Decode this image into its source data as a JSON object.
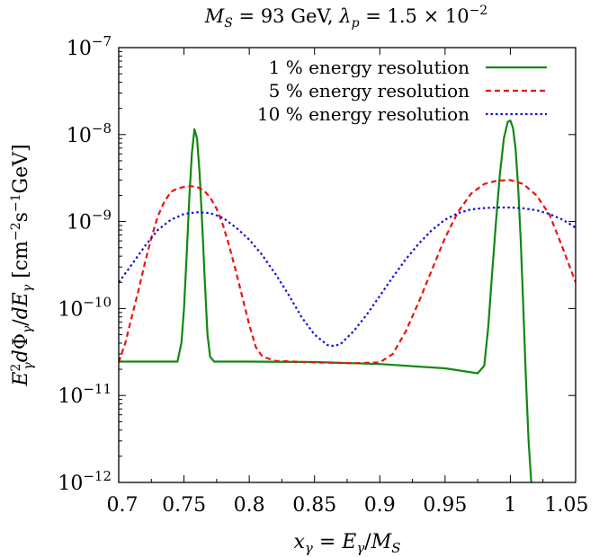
{
  "chart_data": {
    "type": "line",
    "title": "M_S = 93 GeV, λ_p = 1.5 × 10^−2",
    "xlabel": "x_γ = E_γ/M_S",
    "ylabel": "E_γ² dΦ_γ/dE_γ [cm⁻² s⁻¹ GeV]",
    "xlim": [
      0.7,
      1.05
    ],
    "ylim": [
      1e-12,
      1e-07
    ],
    "yscale": "log",
    "grid": false,
    "legend_position": "top-right",
    "x_ticks": [
      "0.7",
      "0.75",
      "0.8",
      "0.85",
      "0.9",
      "0.95",
      "1",
      "1.05"
    ],
    "y_ticks": [
      {
        "base": "10",
        "exp": "−12",
        "value": 1e-12
      },
      {
        "base": "10",
        "exp": "−11",
        "value": 1e-11
      },
      {
        "base": "10",
        "exp": "−10",
        "value": 1e-10
      },
      {
        "base": "10",
        "exp": "−9",
        "value": 1e-09
      },
      {
        "base": "10",
        "exp": "−8",
        "value": 1e-08
      },
      {
        "base": "10",
        "exp": "−7",
        "value": 1e-07
      }
    ],
    "series": [
      {
        "name": "1 % energy resolution",
        "color": "#118811",
        "dash": "solid",
        "points": [
          [
            0.7,
            2.45e-11
          ],
          [
            0.745,
            2.45e-11
          ],
          [
            0.748,
            4e-11
          ],
          [
            0.75,
            1e-10
          ],
          [
            0.752,
            4e-10
          ],
          [
            0.754,
            1.8e-09
          ],
          [
            0.756,
            6e-09
          ],
          [
            0.758,
            1.15e-08
          ],
          [
            0.76,
            9e-09
          ],
          [
            0.762,
            3.5e-09
          ],
          [
            0.764,
            9e-10
          ],
          [
            0.766,
            2e-10
          ],
          [
            0.768,
            5e-11
          ],
          [
            0.77,
            2.8e-11
          ],
          [
            0.773,
            2.45e-11
          ],
          [
            0.8,
            2.45e-11
          ],
          [
            0.85,
            2.42e-11
          ],
          [
            0.9,
            2.3e-11
          ],
          [
            0.95,
            2.05e-11
          ],
          [
            0.975,
            1.8e-11
          ],
          [
            0.98,
            2.2e-11
          ],
          [
            0.983,
            6e-11
          ],
          [
            0.986,
            2.5e-10
          ],
          [
            0.989,
            1e-09
          ],
          [
            0.992,
            3.5e-09
          ],
          [
            0.995,
            9e-09
          ],
          [
            0.998,
            1.4e-08
          ],
          [
            1.0,
            1.45e-08
          ],
          [
            1.002,
            1.2e-08
          ],
          [
            1.004,
            7e-09
          ],
          [
            1.006,
            2.5e-09
          ],
          [
            1.008,
            6e-10
          ],
          [
            1.01,
            1e-10
          ],
          [
            1.012,
            1.5e-11
          ],
          [
            1.014,
            3e-12
          ],
          [
            1.016,
            1e-12
          ]
        ]
      },
      {
        "name": "5 % energy resolution",
        "color": "#ee1111",
        "dash": "dashed",
        "points": [
          [
            0.7,
            2.4e-11
          ],
          [
            0.705,
            4e-11
          ],
          [
            0.71,
            8e-11
          ],
          [
            0.715,
            1.6e-10
          ],
          [
            0.72,
            3.3e-10
          ],
          [
            0.725,
            6.5e-10
          ],
          [
            0.73,
            1.15e-09
          ],
          [
            0.735,
            1.7e-09
          ],
          [
            0.74,
            2.2e-09
          ],
          [
            0.745,
            2.4e-09
          ],
          [
            0.75,
            2.5e-09
          ],
          [
            0.755,
            2.55e-09
          ],
          [
            0.76,
            2.5e-09
          ],
          [
            0.765,
            2.3e-09
          ],
          [
            0.77,
            1.9e-09
          ],
          [
            0.775,
            1.4e-09
          ],
          [
            0.78,
            9e-10
          ],
          [
            0.785,
            5e-10
          ],
          [
            0.79,
            2.6e-10
          ],
          [
            0.795,
            1.3e-10
          ],
          [
            0.8,
            6.5e-11
          ],
          [
            0.805,
            3.6e-11
          ],
          [
            0.81,
            2.8e-11
          ],
          [
            0.82,
            2.5e-11
          ],
          [
            0.85,
            2.4e-11
          ],
          [
            0.88,
            2.35e-11
          ],
          [
            0.9,
            2.4e-11
          ],
          [
            0.91,
            3e-11
          ],
          [
            0.92,
            5.5e-11
          ],
          [
            0.93,
            1.2e-10
          ],
          [
            0.94,
            2.8e-10
          ],
          [
            0.95,
            6.5e-10
          ],
          [
            0.96,
            1.3e-09
          ],
          [
            0.97,
            2.1e-09
          ],
          [
            0.98,
            2.7e-09
          ],
          [
            0.99,
            2.95e-09
          ],
          [
            1.0,
            3e-09
          ],
          [
            1.01,
            2.7e-09
          ],
          [
            1.02,
            2e-09
          ],
          [
            1.03,
            1.2e-09
          ],
          [
            1.04,
            5e-10
          ],
          [
            1.05,
            2e-10
          ]
        ]
      },
      {
        "name": "10 % energy resolution",
        "color": "#1111dd",
        "dash": "dotted",
        "points": [
          [
            0.7,
            2e-10
          ],
          [
            0.71,
            3.2e-10
          ],
          [
            0.72,
            5.2e-10
          ],
          [
            0.73,
            8e-10
          ],
          [
            0.74,
            1.05e-09
          ],
          [
            0.75,
            1.22e-09
          ],
          [
            0.76,
            1.28e-09
          ],
          [
            0.77,
            1.25e-09
          ],
          [
            0.78,
            1.1e-09
          ],
          [
            0.79,
            8.5e-10
          ],
          [
            0.8,
            6.2e-10
          ],
          [
            0.81,
            4.1e-10
          ],
          [
            0.82,
            2.5e-10
          ],
          [
            0.83,
            1.45e-10
          ],
          [
            0.84,
            8e-11
          ],
          [
            0.85,
            5e-11
          ],
          [
            0.86,
            3.8e-11
          ],
          [
            0.865,
            3.7e-11
          ],
          [
            0.87,
            3.9e-11
          ],
          [
            0.88,
            5.5e-11
          ],
          [
            0.89,
            8.5e-11
          ],
          [
            0.9,
            1.4e-10
          ],
          [
            0.91,
            2.3e-10
          ],
          [
            0.92,
            3.7e-10
          ],
          [
            0.93,
            5.6e-10
          ],
          [
            0.94,
            8e-10
          ],
          [
            0.95,
            1.05e-09
          ],
          [
            0.96,
            1.25e-09
          ],
          [
            0.97,
            1.38e-09
          ],
          [
            0.98,
            1.43e-09
          ],
          [
            0.99,
            1.45e-09
          ],
          [
            1.0,
            1.45e-09
          ],
          [
            1.01,
            1.42e-09
          ],
          [
            1.02,
            1.35e-09
          ],
          [
            1.03,
            1.22e-09
          ],
          [
            1.04,
            1.05e-09
          ],
          [
            1.05,
            8.5e-10
          ]
        ]
      }
    ]
  }
}
